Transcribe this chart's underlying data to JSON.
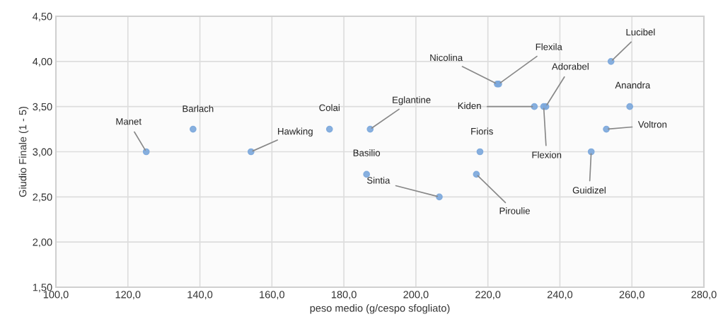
{
  "chart_data": {
    "type": "scatter",
    "xlabel": "peso medio (g/cespo sfogliato)",
    "ylabel": "Giudio Finale (1 - 5)",
    "x": [
      125.1,
      138.1,
      154.2,
      176.0,
      187.3,
      186.3,
      206.5,
      217.8,
      216.8,
      222.6,
      223.0,
      232.9,
      236.1,
      235.5,
      254.2,
      259.4,
      252.9,
      248.7
    ],
    "values": [
      3.0,
      3.25,
      3.0,
      3.25,
      3.25,
      2.75,
      2.5,
      3.0,
      2.75,
      3.75,
      3.75,
      3.5,
      3.5,
      3.5,
      4.0,
      3.5,
      3.25,
      3.0
    ],
    "color": "#7ba7dc",
    "marker": "circle",
    "grid": true,
    "xlim": [
      100,
      280
    ],
    "ylim": [
      1.5,
      4.5
    ],
    "xticks": [
      {
        "value": 100,
        "label": "100,0"
      },
      {
        "value": 120,
        "label": "120,0"
      },
      {
        "value": 140,
        "label": "140,0"
      },
      {
        "value": 160,
        "label": "160,0"
      },
      {
        "value": 180,
        "label": "180,0"
      },
      {
        "value": 200,
        "label": "200,0"
      },
      {
        "value": 220,
        "label": "220,0"
      },
      {
        "value": 240,
        "label": "240,0"
      },
      {
        "value": 260,
        "label": "260,0"
      },
      {
        "value": 280,
        "label": "280,0"
      }
    ],
    "yticks": [
      {
        "value": 1.5,
        "label": "1,50"
      },
      {
        "value": 2.0,
        "label": "2,00"
      },
      {
        "value": 2.5,
        "label": "2,50"
      },
      {
        "value": 3.0,
        "label": "3,00"
      },
      {
        "value": 3.5,
        "label": "3,50"
      },
      {
        "value": 4.0,
        "label": "4,00"
      },
      {
        "value": 4.5,
        "label": "4,50"
      }
    ],
    "annotations": [
      {
        "text": "Manet",
        "x": 125.1,
        "y": 3.0
      },
      {
        "text": "Barlach",
        "x": 138.1,
        "y": 3.25
      },
      {
        "text": "Hawking",
        "x": 154.2,
        "y": 3.0
      },
      {
        "text": "Colai",
        "x": 176.0,
        "y": 3.25
      },
      {
        "text": "Eglantine",
        "x": 187.3,
        "y": 3.25
      },
      {
        "text": "Basilio",
        "x": 186.3,
        "y": 2.75
      },
      {
        "text": "Sintia",
        "x": 206.5,
        "y": 2.5
      },
      {
        "text": "Fioris",
        "x": 217.8,
        "y": 3.0
      },
      {
        "text": "Piroulie",
        "x": 216.8,
        "y": 2.75
      },
      {
        "text": "Nicolina",
        "x": 222.6,
        "y": 3.75
      },
      {
        "text": "Flexila",
        "x": 223.0,
        "y": 3.75
      },
      {
        "text": "Kiden",
        "x": 232.9,
        "y": 3.5
      },
      {
        "text": "Adorabel",
        "x": 236.1,
        "y": 3.5
      },
      {
        "text": "Flexion",
        "x": 235.5,
        "y": 3.5
      },
      {
        "text": "Lucibel",
        "x": 254.2,
        "y": 4.0
      },
      {
        "text": "Anandra",
        "x": 259.4,
        "y": 3.5
      },
      {
        "text": "Voltron",
        "x": 252.9,
        "y": 3.25
      },
      {
        "text": "Guidizel",
        "x": 248.7,
        "y": 3.0
      }
    ]
  }
}
